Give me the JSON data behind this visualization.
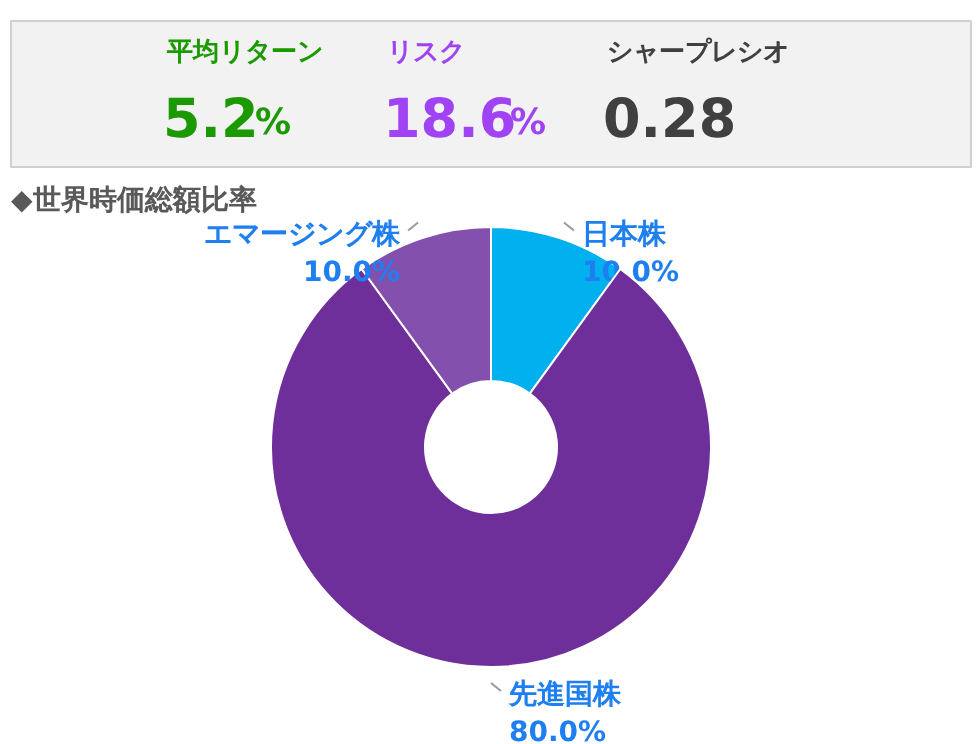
{
  "chart_data": {
    "type": "donut",
    "title": "◆世界時価総額比率",
    "categories": [
      "日本株",
      "先進国株",
      "エマージング株"
    ],
    "values": [
      10,
      80,
      10
    ],
    "value_labels": [
      "10.0%",
      "80.0%",
      "10.0%"
    ],
    "colors": [
      "#00b0ef",
      "#6e2f9b",
      "#8450ad"
    ],
    "legend": false,
    "annotations": [
      "平均リターン",
      "5.2%",
      "リスク",
      "18.6%",
      "シャープレシオ",
      "0.28"
    ]
  }
}
